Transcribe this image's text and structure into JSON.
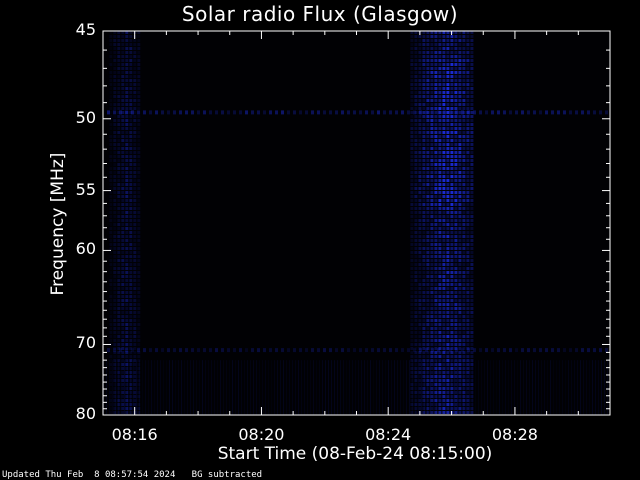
{
  "chart_data": {
    "type": "heatmap",
    "title": "Solar radio Flux (Glasgow)",
    "ylabel": "Frequency [MHz]",
    "xlabel": "Start Time (08-Feb-24 08:15:00)",
    "y_ticks": [
      "45",
      "50",
      "55",
      "60",
      "70",
      "80"
    ],
    "y_tick_values": [
      45,
      50,
      55,
      60,
      70,
      80
    ],
    "ylim": [
      45,
      80
    ],
    "y_scale": "reciprocal",
    "x_ticks": [
      "08:16",
      "08:20",
      "08:24",
      "08:28"
    ],
    "x_tick_minutes": [
      16,
      20,
      24,
      28
    ],
    "xlim_minutes": [
      15,
      31
    ],
    "colormap": "black-to-blue",
    "background_color": "#000000",
    "signal_color": "#1a2ad0",
    "features": [
      {
        "kind": "burst",
        "x_start_minute": 24.7,
        "x_end_minute": 26.7,
        "intensity": 0.9
      },
      {
        "kind": "band",
        "x_start_minute": 15.2,
        "x_end_minute": 16.1,
        "intensity": 0.45
      },
      {
        "kind": "interference_line",
        "frequency_mhz": 49.6,
        "intensity": 0.5
      },
      {
        "kind": "interference_line",
        "frequency_mhz": 70.7,
        "intensity": 0.3
      }
    ]
  },
  "footer": {
    "updated": "Updated Thu Feb  8 08:57:54 2024",
    "note": "BG subtracted"
  }
}
